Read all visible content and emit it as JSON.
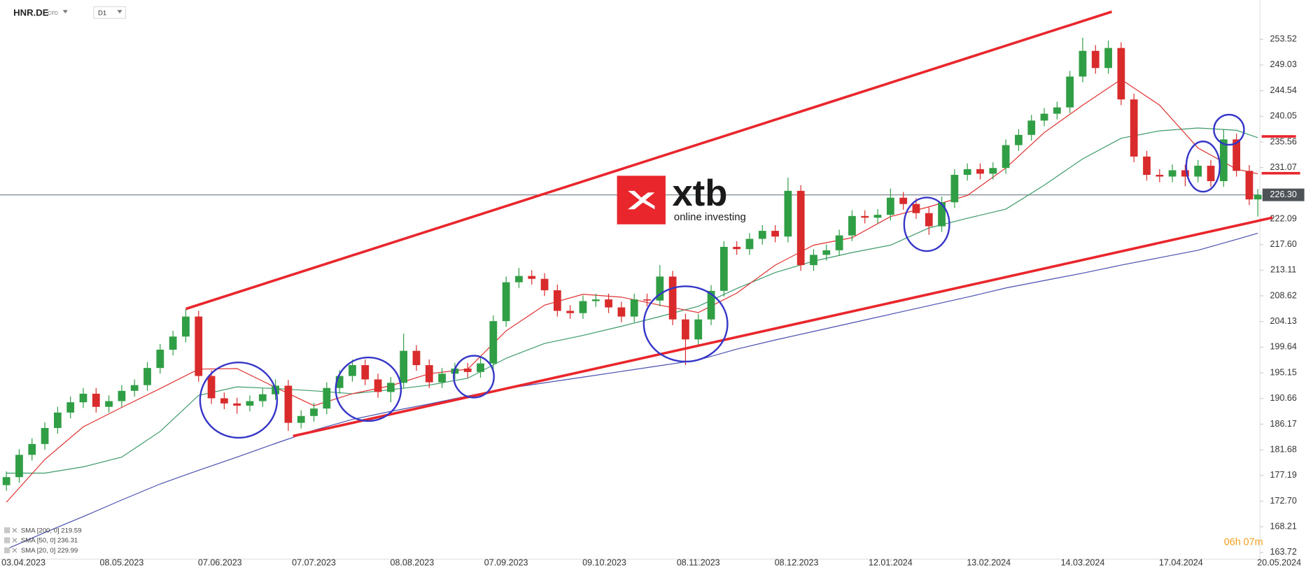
{
  "chart_data": {
    "type": "candlestick",
    "symbol": "HNR.DE",
    "instrument": "CFD",
    "timeframe": "D1",
    "countdown": "06h 07m",
    "watermark": {
      "brand": "xtb",
      "tagline": "online investing"
    },
    "up_color": "#2f9e44",
    "down_color": "#d92b2b",
    "xlim": [
      -1.5,
      293.5
    ],
    "ylim": [
      162.55,
      260.4
    ],
    "xticks": [
      {
        "value": 4,
        "label": "03.04.2023"
      },
      {
        "value": 27,
        "label": "08.05.2023"
      },
      {
        "value": 50,
        "label": "07.06.2023"
      },
      {
        "value": 72,
        "label": "07.07.2023"
      },
      {
        "value": 95,
        "label": "08.08.2023"
      },
      {
        "value": 117,
        "label": "07.09.2023"
      },
      {
        "value": 140,
        "label": "09.10.2023"
      },
      {
        "value": 162,
        "label": "08.11.2023"
      },
      {
        "value": 185,
        "label": "08.12.2023"
      },
      {
        "value": 207,
        "label": "12.01.2024"
      },
      {
        "value": 230,
        "label": "13.02.2024"
      },
      {
        "value": 252,
        "label": "14.03.2024"
      },
      {
        "value": 275,
        "label": "17.04.2024"
      },
      {
        "value": 298,
        "label": "20.05.2024"
      }
    ],
    "yticks": [
      253.52,
      249.03,
      244.54,
      240.05,
      235.56,
      231.07,
      222.09,
      {
        "value": 217.6,
        "label": "217.60"
      },
      213.11,
      208.62,
      204.13,
      199.64,
      195.15,
      190.66,
      186.17,
      181.68,
      177.19,
      {
        "value": 172.7,
        "label": "172.70"
      },
      168.21,
      163.72
    ],
    "current_price": {
      "value": 226.3,
      "label": "226.30"
    },
    "x": [
      0,
      3,
      6,
      9,
      12,
      15,
      18,
      21,
      24,
      27,
      30,
      33,
      36,
      39,
      42,
      45,
      48,
      51,
      54,
      57,
      60,
      63,
      66,
      69,
      72,
      75,
      78,
      81,
      84,
      87,
      90,
      93,
      96,
      99,
      102,
      105,
      108,
      111,
      114,
      117,
      120,
      123,
      126,
      129,
      132,
      135,
      138,
      141,
      144,
      147,
      150,
      153,
      156,
      159,
      162,
      165,
      168,
      171,
      174,
      177,
      180,
      183,
      186,
      189,
      192,
      195,
      198,
      201,
      204,
      207,
      210,
      213,
      216,
      219,
      222,
      225,
      228,
      231,
      234,
      237,
      240,
      243,
      246,
      249,
      252,
      255,
      258,
      261,
      264,
      267,
      270,
      273,
      276,
      279,
      282,
      285,
      288,
      291,
      293
    ],
    "open": [
      175.5,
      176.9,
      180.8,
      182.7,
      185.5,
      188.2,
      190.0,
      191.5,
      189.2,
      190.2,
      192.0,
      193.0,
      196.0,
      199.2,
      201.5,
      205.0,
      194.6,
      190.7,
      189.8,
      189.4,
      190.2,
      191.4,
      192.9,
      186.4,
      187.6,
      188.9,
      192.5,
      194.6,
      196.5,
      194.0,
      191.8,
      193.4,
      199.0,
      196.5,
      193.5,
      195.0,
      195.9,
      195.3,
      196.8,
      204.2,
      211.0,
      212.1,
      211.6,
      209.6,
      206.0,
      205.6,
      207.7,
      208.0,
      206.6,
      205.0,
      208.0,
      207.8,
      212.0,
      204.5,
      201.0,
      204.5,
      209.5,
      217.2,
      216.8,
      218.6,
      220.0,
      219.0,
      227.0,
      214.0,
      215.8,
      216.6,
      219.2,
      222.6,
      222.3,
      222.8,
      225.8,
      224.7,
      223.1,
      220.8,
      225.0,
      229.8,
      230.8,
      230.0,
      231.0,
      235.0,
      236.8,
      239.3,
      240.5,
      241.6,
      247.0,
      251.5,
      248.5,
      252.0,
      243.0,
      233.0,
      229.8,
      229.5,
      230.6,
      229.5,
      231.4,
      228.7,
      236.0,
      230.5,
      225.5
    ],
    "high": [
      177.9,
      181.8,
      183.7,
      186.5,
      189.2,
      191.0,
      192.5,
      192.5,
      191.2,
      193.0,
      194.0,
      197.0,
      200.2,
      202.5,
      206.3,
      206.0,
      195.6,
      191.7,
      190.8,
      191.2,
      192.4,
      194.0,
      193.9,
      188.6,
      189.9,
      193.5,
      195.6,
      197.5,
      197.5,
      195.0,
      194.4,
      202.0,
      200.0,
      197.5,
      196.0,
      196.9,
      196.9,
      197.8,
      205.2,
      212.0,
      213.5,
      213.1,
      212.6,
      210.6,
      207.0,
      208.7,
      209.0,
      209.0,
      207.6,
      209.0,
      209.0,
      214.0,
      213.0,
      205.5,
      205.5,
      210.5,
      218.2,
      218.2,
      219.6,
      221.0,
      221.0,
      229.3,
      228.0,
      216.8,
      217.6,
      220.2,
      223.6,
      223.6,
      223.8,
      227.4,
      226.8,
      225.7,
      224.1,
      226.0,
      230.8,
      231.8,
      231.8,
      232.0,
      236.0,
      237.8,
      240.3,
      241.5,
      242.6,
      248.0,
      253.8,
      252.5,
      253.3,
      253.0,
      244.0,
      234.0,
      230.8,
      231.6,
      231.6,
      232.4,
      232.4,
      237.8,
      237.0,
      231.5,
      227.3
    ],
    "low": [
      174.5,
      175.9,
      179.8,
      181.7,
      184.5,
      187.2,
      189.0,
      188.2,
      188.2,
      189.2,
      191.0,
      192.0,
      195.0,
      198.2,
      200.5,
      193.6,
      189.7,
      188.8,
      188.0,
      188.4,
      189.2,
      190.4,
      185.0,
      185.4,
      186.6,
      187.9,
      191.5,
      193.6,
      193.0,
      190.8,
      190.0,
      192.4,
      195.5,
      192.5,
      192.5,
      194.0,
      194.3,
      194.3,
      195.8,
      203.2,
      210.0,
      210.6,
      208.6,
      205.0,
      204.6,
      204.6,
      206.7,
      205.6,
      204.0,
      204.0,
      206.8,
      206.8,
      203.5,
      196.5,
      200.0,
      203.5,
      208.5,
      215.8,
      215.8,
      217.6,
      218.0,
      218.0,
      213.0,
      213.0,
      214.8,
      215.6,
      218.2,
      221.3,
      221.3,
      221.8,
      223.7,
      222.1,
      219.3,
      219.8,
      224.0,
      228.8,
      229.0,
      229.0,
      230.0,
      234.0,
      235.8,
      238.3,
      239.5,
      240.6,
      246.0,
      247.5,
      247.5,
      242.0,
      232.0,
      228.8,
      228.5,
      228.5,
      227.8,
      228.5,
      227.7,
      227.7,
      229.5,
      224.5,
      222.5
    ],
    "close": [
      176.9,
      180.8,
      182.7,
      185.5,
      188.2,
      190.0,
      191.5,
      189.2,
      190.2,
      192.0,
      193.0,
      196.0,
      199.2,
      201.5,
      205.0,
      194.6,
      190.7,
      189.8,
      189.4,
      190.2,
      191.4,
      192.9,
      186.4,
      187.6,
      188.9,
      192.5,
      194.6,
      196.5,
      194.0,
      191.8,
      193.4,
      199.0,
      196.5,
      193.5,
      195.0,
      195.9,
      195.3,
      196.8,
      204.2,
      211.0,
      212.1,
      211.6,
      209.6,
      206.0,
      205.6,
      207.7,
      208.0,
      206.6,
      205.0,
      208.0,
      207.8,
      212.0,
      204.5,
      201.0,
      204.5,
      209.5,
      217.2,
      216.8,
      218.6,
      220.0,
      219.0,
      227.0,
      214.0,
      215.8,
      216.6,
      219.2,
      222.6,
      222.3,
      222.8,
      225.8,
      224.7,
      223.1,
      220.8,
      225.0,
      229.8,
      230.8,
      230.0,
      231.0,
      235.0,
      236.8,
      239.3,
      240.5,
      241.6,
      247.0,
      251.5,
      248.5,
      252.0,
      243.0,
      233.0,
      229.8,
      229.5,
      230.6,
      229.5,
      231.4,
      228.7,
      236.0,
      230.5,
      225.5,
      226.3
    ],
    "overlays": {
      "x": [
        0,
        9,
        18,
        27,
        36,
        45,
        54,
        63,
        72,
        81,
        90,
        99,
        108,
        117,
        126,
        135,
        144,
        153,
        162,
        171,
        180,
        189,
        198,
        207,
        216,
        225,
        234,
        243,
        252,
        261,
        270,
        279,
        288,
        293
      ],
      "series": [
        {
          "name": "SMA [200, 0] 219.59",
          "color": "#4a50b0",
          "values": [
            164.3,
            167.2,
            170.0,
            172.9,
            175.7,
            178.1,
            180.4,
            182.8,
            185.1,
            187.0,
            188.4,
            189.7,
            191.1,
            192.4,
            193.4,
            194.4,
            195.4,
            196.4,
            197.4,
            199.3,
            200.9,
            202.4,
            203.9,
            205.4,
            206.9,
            208.4,
            210.0,
            211.3,
            212.6,
            214.0,
            215.3,
            216.6,
            218.5,
            219.59
          ]
        },
        {
          "name": "SMA [50, 0] 236.31",
          "color": "#3d9a6a",
          "values": [
            177.6,
            177.6,
            178.7,
            180.4,
            184.9,
            191.2,
            192.7,
            192.4,
            192.0,
            191.5,
            192.2,
            193.0,
            194.2,
            197.7,
            200.3,
            201.7,
            203.3,
            205.0,
            206.8,
            209.9,
            212.7,
            214.7,
            216.2,
            217.5,
            220.5,
            222.2,
            223.8,
            228.0,
            232.6,
            236.2,
            237.5,
            238.0,
            237.6,
            236.31
          ]
        },
        {
          "name": "SMA [20, 0] 229.99",
          "color": "#e03030",
          "values": [
            172.5,
            180.0,
            185.7,
            189.1,
            192.4,
            195.8,
            195.9,
            192.6,
            189.4,
            191.5,
            192.9,
            195.0,
            195.8,
            202.5,
            207.0,
            208.9,
            208.4,
            207.0,
            205.7,
            209.1,
            214.0,
            217.5,
            218.8,
            222.5,
            224.2,
            226.2,
            231.0,
            237.2,
            242.0,
            246.5,
            242.0,
            234.5,
            230.8,
            229.99
          ]
        }
      ]
    }
  }
}
